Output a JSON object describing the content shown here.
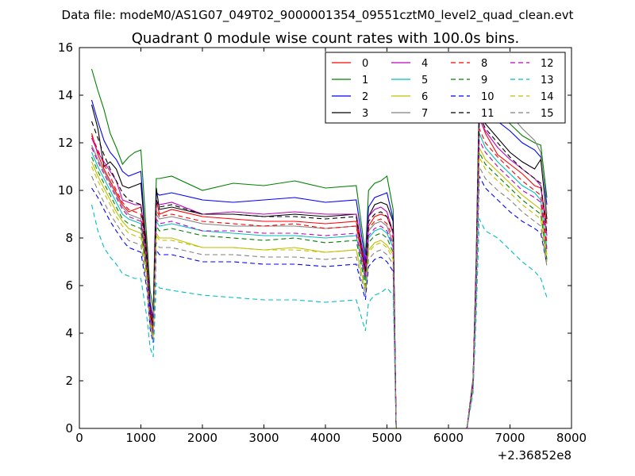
{
  "chart_data": {
    "type": "line",
    "suptitle": "Data file: modeM0/AS1G07_049T02_9000001354_09551cztM0_level2_quad_clean.evt",
    "title": "Quadrant 0 module wise count rates with 100.0s bins.",
    "xlabel": "",
    "ylabel": "",
    "x_offset_label": "+2.36852e8",
    "xlim": [
      0,
      8000
    ],
    "ylim": [
      0,
      16
    ],
    "xticks": [
      0,
      1000,
      2000,
      3000,
      4000,
      5000,
      6000,
      7000,
      8000
    ],
    "yticks": [
      0,
      2,
      4,
      6,
      8,
      10,
      12,
      14,
      16
    ],
    "grid": false,
    "legend": {
      "placement": "top-right",
      "columns": 4
    },
    "anchor_x": [
      200,
      300,
      400,
      500,
      600,
      700,
      800,
      900,
      1000,
      1100,
      1150,
      1200,
      1250,
      1300,
      1500,
      2000,
      2500,
      3000,
      3500,
      4000,
      4500,
      4650,
      4700,
      4800,
      4900,
      5000,
      5100,
      5150,
      5200,
      6300,
      6400,
      6450,
      6500,
      6600,
      6800,
      7000,
      7200,
      7400,
      7500,
      7600
    ],
    "series": [
      {
        "name": "0",
        "color": "#ff0000",
        "dash": false,
        "anchor_y": [
          12.4,
          11.5,
          10.9,
          10.4,
          9.9,
          9.4,
          9.1,
          9.2,
          9.3,
          7.8,
          5.2,
          4.3,
          9.6,
          9.0,
          9.2,
          8.9,
          8.8,
          8.7,
          8.7,
          8.6,
          8.7,
          6.6,
          8.5,
          8.9,
          9.0,
          8.9,
          8.2,
          0,
          0,
          0,
          2.0,
          6.5,
          13.1,
          12.4,
          11.5,
          11.1,
          10.7,
          10.2,
          10.1,
          8.6
        ]
      },
      {
        "name": "1",
        "color": "#008000",
        "dash": false,
        "anchor_y": [
          15.1,
          14.2,
          13.4,
          12.4,
          11.8,
          11.1,
          11.4,
          11.6,
          11.7,
          7.8,
          5.8,
          5.0,
          10.5,
          10.5,
          10.6,
          10.0,
          10.3,
          10.2,
          10.4,
          10.1,
          10.2,
          7.3,
          10.0,
          10.3,
          10.4,
          10.6,
          9.2,
          0,
          0,
          0,
          2.1,
          7.1,
          14.3,
          13.8,
          13.3,
          12.8,
          12.3,
          12.0,
          11.9,
          9.7
        ]
      },
      {
        "name": "2",
        "color": "#0000ff",
        "dash": false,
        "anchor_y": [
          13.8,
          12.9,
          12.1,
          11.6,
          11.3,
          10.8,
          10.6,
          10.7,
          10.8,
          7.0,
          5.3,
          4.6,
          9.9,
          9.8,
          9.9,
          9.6,
          9.5,
          9.6,
          9.7,
          9.5,
          9.6,
          7.0,
          9.3,
          9.7,
          9.8,
          9.9,
          8.8,
          0,
          0,
          0,
          2.0,
          6.9,
          14.0,
          13.6,
          12.9,
          12.5,
          12.0,
          11.7,
          11.4,
          9.4
        ]
      },
      {
        "name": "3",
        "color": "#000000",
        "dash": false,
        "anchor_y": [
          13.6,
          12.6,
          11.0,
          11.2,
          10.9,
          10.2,
          10.1,
          10.2,
          10.3,
          7.2,
          4.9,
          4.3,
          10.1,
          9.2,
          9.3,
          9.0,
          9.0,
          8.9,
          9.0,
          8.9,
          9.0,
          6.7,
          8.9,
          9.4,
          9.5,
          9.4,
          8.7,
          0,
          0,
          0,
          2.0,
          6.7,
          13.3,
          12.8,
          12.2,
          11.6,
          11.2,
          10.9,
          11.3,
          8.8
        ]
      },
      {
        "name": "4",
        "color": "#bf00bf",
        "dash": false,
        "anchor_y": [
          12.2,
          11.6,
          11.2,
          10.8,
          10.4,
          9.6,
          9.5,
          9.4,
          9.4,
          7.1,
          4.8,
          4.2,
          9.5,
          9.4,
          9.5,
          9.0,
          9.1,
          9.0,
          9.1,
          9.0,
          9.0,
          6.8,
          8.9,
          9.2,
          9.3,
          9.1,
          8.2,
          0,
          0,
          0,
          2.0,
          6.6,
          13.0,
          12.5,
          11.8,
          11.3,
          10.9,
          10.5,
          10.2,
          8.1
        ]
      },
      {
        "name": "5",
        "color": "#00bfbf",
        "dash": false,
        "anchor_y": [
          11.6,
          11.0,
          10.5,
          10.0,
          9.5,
          9.0,
          8.8,
          8.7,
          8.6,
          6.6,
          4.6,
          4.0,
          8.7,
          8.5,
          8.6,
          8.3,
          8.2,
          8.1,
          8.1,
          8.0,
          8.1,
          6.2,
          8.0,
          8.3,
          8.4,
          8.2,
          7.6,
          0,
          0,
          0,
          1.9,
          6.2,
          12.4,
          11.8,
          11.2,
          10.7,
          10.2,
          9.9,
          9.6,
          7.6
        ]
      },
      {
        "name": "6",
        "color": "#bfbf00",
        "dash": false,
        "anchor_y": [
          11.2,
          10.6,
          10.1,
          9.6,
          9.1,
          8.7,
          8.4,
          8.3,
          8.2,
          6.4,
          4.5,
          3.9,
          8.2,
          8.0,
          8.0,
          7.6,
          7.6,
          7.5,
          7.6,
          7.4,
          7.5,
          5.8,
          7.5,
          7.8,
          7.9,
          7.7,
          7.3,
          0,
          0,
          0,
          1.8,
          6.0,
          11.8,
          11.3,
          10.8,
          10.3,
          9.8,
          9.4,
          9.2,
          7.3
        ]
      },
      {
        "name": "7",
        "color": "#808080",
        "dash": false,
        "anchor_y": [
          11.9,
          11.3,
          10.8,
          10.3,
          9.8,
          9.3,
          9.0,
          8.9,
          8.8,
          6.8,
          4.7,
          4.1,
          9.0,
          8.8,
          8.9,
          8.6,
          8.5,
          8.5,
          8.5,
          8.4,
          8.5,
          6.4,
          8.3,
          8.6,
          8.7,
          8.5,
          7.8,
          0,
          0,
          0,
          1.9,
          6.4,
          13.8,
          13.5,
          13.9,
          13.2,
          12.6,
          12.1,
          11.6,
          9.0
        ]
      },
      {
        "name": "8",
        "color": "#ff0000",
        "dash": true,
        "anchor_y": [
          12.3,
          11.7,
          11.1,
          10.6,
          10.0,
          9.5,
          9.2,
          9.1,
          9.0,
          6.9,
          4.8,
          4.2,
          9.2,
          8.9,
          9.0,
          8.7,
          8.6,
          8.5,
          8.6,
          8.4,
          8.5,
          6.5,
          8.4,
          8.7,
          8.8,
          8.6,
          8.0,
          0,
          0,
          0,
          1.9,
          6.5,
          12.6,
          12.0,
          11.4,
          10.9,
          10.4,
          10.0,
          9.8,
          7.8
        ]
      },
      {
        "name": "9",
        "color": "#008000",
        "dash": true,
        "anchor_y": [
          11.4,
          10.8,
          10.3,
          9.8,
          9.3,
          8.8,
          8.6,
          8.5,
          8.4,
          6.5,
          4.5,
          3.9,
          8.5,
          8.3,
          8.4,
          8.1,
          8.0,
          7.9,
          8.0,
          7.8,
          7.9,
          6.0,
          7.8,
          8.1,
          8.2,
          8.0,
          7.4,
          0,
          0,
          0,
          1.8,
          6.1,
          11.6,
          11.1,
          10.6,
          10.1,
          9.6,
          9.2,
          9.0,
          7.1
        ]
      },
      {
        "name": "10",
        "color": "#0000ff",
        "dash": true,
        "anchor_y": [
          10.1,
          9.7,
          9.2,
          8.7,
          8.3,
          7.9,
          7.6,
          7.5,
          7.4,
          5.8,
          4.2,
          3.6,
          7.5,
          7.3,
          7.3,
          7.0,
          7.0,
          6.9,
          6.9,
          6.8,
          6.9,
          5.4,
          6.8,
          7.1,
          7.2,
          7.0,
          6.6,
          0,
          0,
          0,
          1.7,
          5.5,
          10.6,
          10.1,
          9.6,
          9.1,
          8.7,
          8.4,
          8.2,
          6.9
        ]
      },
      {
        "name": "11",
        "color": "#000000",
        "dash": true,
        "anchor_y": [
          12.9,
          12.2,
          11.5,
          10.9,
          10.4,
          9.9,
          9.6,
          9.5,
          9.4,
          7.0,
          4.9,
          4.3,
          9.6,
          9.3,
          9.4,
          9.0,
          9.0,
          8.9,
          8.9,
          8.8,
          8.9,
          6.6,
          8.7,
          9.0,
          9.1,
          8.9,
          8.3,
          0,
          0,
          0,
          2.0,
          6.6,
          13.2,
          12.6,
          12.0,
          11.4,
          10.9,
          10.5,
          10.3,
          8.2
        ]
      },
      {
        "name": "12",
        "color": "#bf00bf",
        "dash": true,
        "anchor_y": [
          11.8,
          11.2,
          10.7,
          10.2,
          9.7,
          9.2,
          8.9,
          8.8,
          8.7,
          6.7,
          4.6,
          4.0,
          8.8,
          8.6,
          8.7,
          8.3,
          8.3,
          8.2,
          8.2,
          8.1,
          8.2,
          6.3,
          8.1,
          8.4,
          8.5,
          8.3,
          7.7,
          0,
          0,
          0,
          1.9,
          6.3,
          12.1,
          11.6,
          11.0,
          10.5,
          10.0,
          9.7,
          9.5,
          7.5
        ]
      },
      {
        "name": "13",
        "color": "#00bfbf",
        "dash": true,
        "anchor_y": [
          9.4,
          8.3,
          7.6,
          7.2,
          6.9,
          6.5,
          6.4,
          6.3,
          6.3,
          4.6,
          3.4,
          3.0,
          6.1,
          5.9,
          5.8,
          5.6,
          5.5,
          5.4,
          5.4,
          5.3,
          5.4,
          4.1,
          5.3,
          5.6,
          5.7,
          5.9,
          5.6,
          0,
          0,
          0,
          1.5,
          4.7,
          8.8,
          8.3,
          8.0,
          7.5,
          7.0,
          6.6,
          6.3,
          5.5
        ]
      },
      {
        "name": "14",
        "color": "#bfbf00",
        "dash": true,
        "anchor_y": [
          11.0,
          10.4,
          9.9,
          9.4,
          8.9,
          8.5,
          8.2,
          8.1,
          8.0,
          6.2,
          4.4,
          3.8,
          8.1,
          7.9,
          7.9,
          7.6,
          7.6,
          7.5,
          7.5,
          7.4,
          7.5,
          5.8,
          7.4,
          7.7,
          7.8,
          7.6,
          7.1,
          0,
          0,
          0,
          1.8,
          5.9,
          11.4,
          10.9,
          10.4,
          9.9,
          9.4,
          9.0,
          8.8,
          7.0
        ]
      },
      {
        "name": "15",
        "color": "#808080",
        "dash": true,
        "anchor_y": [
          10.6,
          10.0,
          9.5,
          9.0,
          8.6,
          8.2,
          7.9,
          7.8,
          7.7,
          6.0,
          4.3,
          3.7,
          7.8,
          7.6,
          7.6,
          7.3,
          7.3,
          7.2,
          7.2,
          7.1,
          7.2,
          5.6,
          7.1,
          7.4,
          7.5,
          7.3,
          6.9,
          0,
          0,
          0,
          1.7,
          5.7,
          11.0,
          10.5,
          10.0,
          9.6,
          9.1,
          8.7,
          8.5,
          6.8
        ]
      }
    ]
  }
}
